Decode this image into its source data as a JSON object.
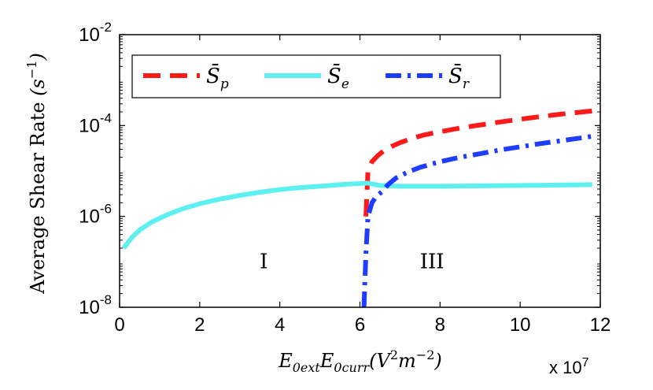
{
  "chart_data": {
    "type": "line",
    "xlabel_main": "E",
    "xlabel_sub1": "0ext",
    "xlabel_mid": "E",
    "xlabel_sub2": "0curr",
    "xlabel_units_open": "(V",
    "xlabel_units_sup1": "2",
    "xlabel_units_mid": "m",
    "xlabel_units_sup2": "−2",
    "xlabel_units_close": ")",
    "x_multiplier": "x 10",
    "x_multiplier_exp": "7",
    "ylabel_text": "Average Shear Rate ",
    "ylabel_units_open": "(s",
    "ylabel_units_sup": "−1",
    "ylabel_units_close": ")",
    "xlim": [
      0,
      12
    ],
    "ylim_log10": [
      -8,
      -2
    ],
    "y_scale": "log",
    "x_ticks": [
      "0",
      "2",
      "4",
      "6",
      "8",
      "10",
      "12"
    ],
    "y_ticks": [
      {
        "base": "10",
        "exp": "-8"
      },
      {
        "base": "10",
        "exp": "-6"
      },
      {
        "base": "10",
        "exp": "-4"
      },
      {
        "base": "10",
        "exp": "-2"
      }
    ],
    "legend_position": "top-left",
    "grid": false,
    "annotations": [
      {
        "text": "I",
        "x": 3.6,
        "y": 1e-07
      },
      {
        "text": "III",
        "x": 7.8,
        "y": 1e-07
      }
    ],
    "series": [
      {
        "name": "S̄p",
        "name_base": "S̄",
        "name_sub": "p",
        "color": "#ff1a1a",
        "style": "dashed",
        "x": [
          6.15,
          6.2,
          6.3,
          6.45,
          6.6,
          6.8,
          7.0,
          7.3,
          7.6,
          8.0,
          8.5,
          9.0,
          9.5,
          10.0,
          10.5,
          11.0,
          11.5,
          11.8
        ],
        "y": [
          1e-06,
          1e-05,
          1.6e-05,
          2.2e-05,
          2.8e-05,
          3.5e-05,
          4.2e-05,
          5.2e-05,
          6.2e-05,
          7.3e-05,
          8.8e-05,
          0.000103,
          0.00012,
          0.000138,
          0.000157,
          0.000177,
          0.000197,
          0.00021
        ]
      },
      {
        "name": "S̄e",
        "name_base": "S̄",
        "name_sub": "e",
        "color": "#5ef0f0",
        "style": "solid",
        "x": [
          0.1,
          0.3,
          0.5,
          0.8,
          1.2,
          1.6,
          2.0,
          2.5,
          3.0,
          3.5,
          4.0,
          4.5,
          5.0,
          5.5,
          6.0,
          6.2,
          6.5,
          7.0,
          7.5,
          8.0,
          9.0,
          10.0,
          11.0,
          11.8
        ],
        "y": [
          2e-07,
          3.4e-07,
          5e-07,
          7.5e-07,
          1.1e-06,
          1.5e-06,
          1.9e-06,
          2.4e-06,
          2.9e-06,
          3.4e-06,
          3.9e-06,
          4.3e-06,
          4.6e-06,
          5e-06,
          5.3e-06,
          5.4e-06,
          4.8e-06,
          4.6e-06,
          4.6e-06,
          4.6e-06,
          4.7e-06,
          4.8e-06,
          4.9e-06,
          5e-06
        ]
      },
      {
        "name": "S̄r",
        "name_base": "S̄",
        "name_sub": "r",
        "color": "#1f3dff",
        "style": "dashdot",
        "x": [
          6.1,
          6.15,
          6.2,
          6.3,
          6.4,
          6.55,
          6.7,
          6.9,
          7.2,
          7.5,
          8.0,
          8.5,
          9.0,
          9.5,
          10.0,
          10.5,
          11.0,
          11.5,
          11.8
        ],
        "y": [
          1e-08,
          1.5e-07,
          1e-06,
          2e-06,
          2.7e-06,
          3.5e-06,
          5e-06,
          7e-06,
          9.5e-06,
          1.2e-05,
          1.6e-05,
          2e-05,
          2.4e-05,
          2.9e-05,
          3.4e-05,
          4e-05,
          4.6e-05,
          5.3e-05,
          5.8e-05
        ]
      }
    ]
  }
}
